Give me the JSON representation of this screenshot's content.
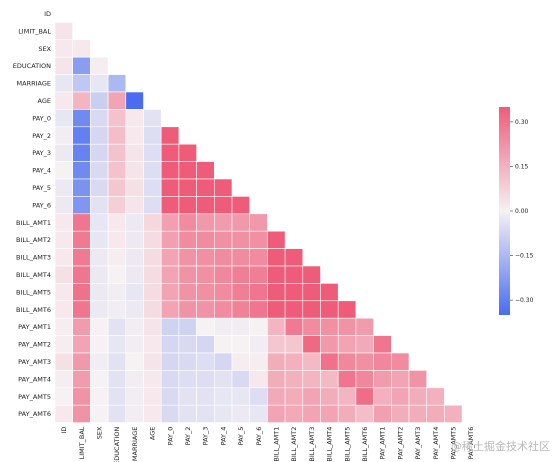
{
  "watermark": "@稀土掘金技术社区",
  "chart_data": {
    "type": "heatmap",
    "mask": "upper-triangle",
    "labels": [
      "ID",
      "LIMIT_BAL",
      "SEX",
      "EDUCATION",
      "MARRIAGE",
      "AGE",
      "PAY_0",
      "PAY_2",
      "PAY_3",
      "PAY_4",
      "PAY_5",
      "PAY_6",
      "BILL_AMT1",
      "BILL_AMT2",
      "BILL_AMT3",
      "BILL_AMT4",
      "BILL_AMT5",
      "BILL_AMT6",
      "PAY_AMT1",
      "PAY_AMT2",
      "PAY_AMT3",
      "PAY_AMT4",
      "PAY_AMT5",
      "PAY_AMT6"
    ],
    "colorbar": {
      "min": -0.35,
      "max": 0.35,
      "ticks": [
        0.3,
        0.15,
        0.0,
        -0.15,
        -0.3
      ],
      "tick_labels": [
        "0.30",
        "0.15",
        "0.00",
        "−0.15",
        "−0.30"
      ],
      "low_color": "#4a6cf0",
      "mid_color": "#f6f1f3",
      "high_color": "#ee5c79"
    },
    "values": [
      [],
      [
        0.03
      ],
      [
        0.02,
        0.02
      ],
      [
        0.03,
        -0.22,
        0.01
      ],
      [
        -0.03,
        -0.11,
        -0.03,
        -0.15
      ],
      [
        0.02,
        0.14,
        -0.09,
        0.18,
        -0.41
      ],
      [
        -0.03,
        -0.27,
        -0.06,
        0.11,
        0.02,
        -0.04
      ],
      [
        -0.01,
        -0.3,
        -0.07,
        0.12,
        0.02,
        -0.05,
        0.67
      ],
      [
        -0.02,
        -0.29,
        -0.07,
        0.11,
        0.03,
        -0.05,
        0.57,
        0.77
      ],
      [
        -0.0,
        -0.27,
        -0.06,
        0.11,
        0.03,
        -0.05,
        0.54,
        0.66,
        0.78
      ],
      [
        -0.02,
        -0.25,
        -0.06,
        0.1,
        0.04,
        -0.05,
        0.51,
        0.62,
        0.69,
        0.82
      ],
      [
        -0.02,
        -0.24,
        -0.04,
        0.08,
        0.03,
        -0.05,
        0.47,
        0.58,
        0.63,
        0.72,
        0.82
      ],
      [
        0.02,
        0.29,
        -0.03,
        0.02,
        -0.02,
        0.06,
        0.19,
        0.24,
        0.21,
        0.2,
        0.21,
        0.21
      ],
      [
        0.02,
        0.28,
        -0.03,
        0.02,
        -0.02,
        0.05,
        0.19,
        0.24,
        0.24,
        0.23,
        0.23,
        0.23,
        0.95
      ],
      [
        0.02,
        0.28,
        -0.02,
        0.01,
        -0.02,
        0.05,
        0.18,
        0.22,
        0.23,
        0.24,
        0.24,
        0.24,
        0.89,
        0.93
      ],
      [
        0.04,
        0.29,
        -0.02,
        -0.0,
        -0.02,
        0.05,
        0.18,
        0.22,
        0.23,
        0.25,
        0.27,
        0.27,
        0.86,
        0.89,
        0.92
      ],
      [
        0.02,
        0.3,
        -0.02,
        -0.01,
        -0.03,
        0.05,
        0.18,
        0.22,
        0.23,
        0.24,
        0.27,
        0.29,
        0.83,
        0.86,
        0.88,
        0.94
      ],
      [
        0.02,
        0.29,
        -0.02,
        -0.01,
        -0.02,
        0.05,
        0.18,
        0.22,
        0.22,
        0.24,
        0.26,
        0.29,
        0.8,
        0.83,
        0.85,
        0.9,
        0.95
      ],
      [
        0.01,
        0.2,
        -0.0,
        -0.04,
        -0.01,
        0.03,
        -0.08,
        -0.08,
        0.0,
        -0.01,
        -0.01,
        -0.0,
        0.14,
        0.28,
        0.24,
        0.23,
        0.22,
        0.2
      ],
      [
        0.01,
        0.18,
        -0.0,
        -0.03,
        -0.01,
        0.02,
        -0.07,
        -0.06,
        -0.07,
        -0.0,
        -0.0,
        -0.01,
        0.1,
        0.1,
        0.32,
        0.21,
        0.18,
        0.17,
        0.29
      ],
      [
        0.04,
        0.21,
        -0.01,
        -0.04,
        -0.0,
        0.03,
        -0.07,
        -0.06,
        -0.05,
        -0.07,
        0.01,
        0.01,
        0.16,
        0.15,
        0.13,
        0.3,
        0.25,
        0.23,
        0.25,
        0.24
      ],
      [
        0.01,
        0.2,
        -0.0,
        -0.04,
        -0.01,
        0.02,
        -0.06,
        -0.05,
        -0.05,
        -0.04,
        -0.06,
        0.02,
        0.16,
        0.15,
        0.14,
        0.13,
        0.29,
        0.25,
        0.2,
        0.18,
        0.22
      ],
      [
        0.0,
        0.22,
        -0.0,
        -0.04,
        -0.01,
        0.02,
        -0.06,
        -0.04,
        -0.04,
        -0.03,
        -0.03,
        -0.05,
        0.17,
        0.16,
        0.18,
        0.16,
        0.14,
        0.31,
        0.15,
        0.18,
        0.16,
        0.15
      ],
      [
        0.02,
        0.22,
        -0.0,
        -0.04,
        -0.01,
        0.02,
        -0.06,
        -0.04,
        -0.04,
        -0.03,
        -0.02,
        -0.03,
        0.18,
        0.17,
        0.18,
        0.18,
        0.16,
        0.12,
        0.19,
        0.16,
        0.16,
        0.16,
        0.15
      ]
    ]
  }
}
